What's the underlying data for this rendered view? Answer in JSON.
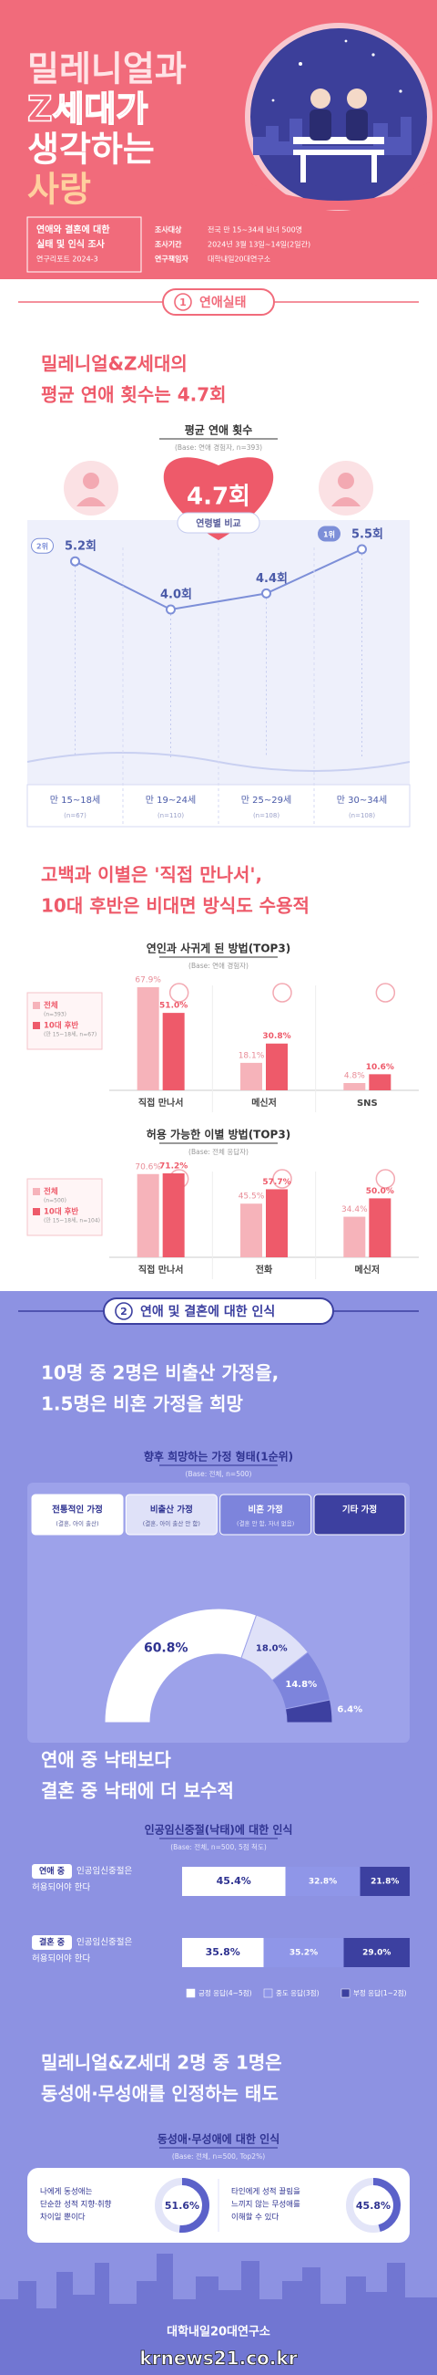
{
  "header": {
    "title_lines": [
      "밀레니얼과",
      "Z세대가",
      "생각하는",
      "사랑"
    ],
    "report_lines": [
      "연애와 결혼에 대한",
      "실태 및 인식 조사",
      "연구리포트 2024-3"
    ],
    "survey": [
      {
        "label": "조사대상",
        "value": "전국 만 15~34세 남녀 500명"
      },
      {
        "label": "조사기간",
        "value": "2024년 3월 13일~14일(2일간)"
      },
      {
        "label": "연구책임자",
        "value": "대학내일20대연구소"
      }
    ]
  },
  "section1": {
    "number": "1",
    "title": "연애실태"
  },
  "avg_dating": {
    "headline": [
      "밀레니얼&Z세대의",
      "평균 연애 횟수는 4.7회"
    ],
    "title": "평균 연애 횟수",
    "base": "(Base: 연애 경험자, n=393)",
    "value": 4.7,
    "value_label": "4.7회",
    "color": "#ee5a6a"
  },
  "age_chart": {
    "type": "line",
    "title": "연령별 비교",
    "categories": [
      "만 15~18세",
      "만 19~24세",
      "만 25~29세",
      "만 30~34세"
    ],
    "notes": [
      "(n=67)",
      "(n=110)",
      "(n=108)",
      "(n=108)"
    ],
    "values": [
      5.2,
      4.0,
      4.4,
      5.5
    ],
    "value_labels": [
      "5.2회",
      "4.0회",
      "4.4회",
      "5.5회"
    ],
    "ranks": [
      "2위",
      null,
      null,
      "1위"
    ],
    "color": "#7d8fd8"
  },
  "method_headline": [
    "고백과 이별은 '직접 만나서',",
    "10대 후반은 비대면 방식도 수용적"
  ],
  "bar_charts": [
    {
      "type": "bar",
      "title": "연인과 사귀게 된 방법(TOP3)",
      "base": "(Base: 연애 경험자)",
      "categories": [
        "직접 만나서",
        "메신저",
        "SNS"
      ],
      "series": [
        {
          "name": "전체",
          "note": "(n=393)",
          "color": "#f6b3ba",
          "values": [
            67.9,
            18.1,
            4.8
          ],
          "value_labels": [
            "67.9%",
            "18.1%",
            "4.8%"
          ]
        },
        {
          "name": "10대 후반",
          "note": "(만 15~18세, n=67)",
          "color": "#ee5a6a",
          "values": [
            51.0,
            30.8,
            10.6
          ],
          "value_labels": [
            "51.0%",
            "30.8%",
            "10.6%"
          ]
        }
      ]
    },
    {
      "type": "bar",
      "title": "허용 가능한 이별 방법(TOP3)",
      "base": "(Base: 전체 응답자)",
      "categories": [
        "직접 만나서",
        "전화",
        "메신저"
      ],
      "series": [
        {
          "name": "전체",
          "note": "(n=500)",
          "color": "#f6b3ba",
          "values": [
            70.6,
            45.5,
            34.4
          ],
          "value_labels": [
            "70.6%",
            "45.5%",
            "34.4%"
          ]
        },
        {
          "name": "10대 후반",
          "note": "(만 15~18세, n=104)",
          "color": "#ee5a6a",
          "values": [
            71.2,
            57.7,
            50.0
          ],
          "value_labels": [
            "71.2%",
            "57.7%",
            "50.0%"
          ]
        }
      ]
    }
  ],
  "section2": {
    "number": "2",
    "title": "연애 및 결혼에 대한 인식"
  },
  "family": {
    "type": "half_donut",
    "headline": [
      "10명 중 2명은 비출산 가정을,",
      "1.5명은 비혼 가정을 희망"
    ],
    "title": "향후 희망하는 가정 형태(1순위)",
    "base": "(Base: 전체, n=500)",
    "categories": [
      "전통적인 가정",
      "비출산 가정",
      "비혼 가정",
      "기타 가정"
    ],
    "descriptions": [
      "(결혼, 아이 출산)",
      "(결혼, 아이 출산 안 함)",
      "(결혼 안 함, 자녀 없음)",
      null
    ],
    "values": [
      60.8,
      18.0,
      14.8,
      6.4
    ],
    "value_labels": [
      "60.8%",
      "18.0%",
      "14.8%",
      "6.4%"
    ],
    "colors": [
      "#ffffff",
      "#dfe1f8",
      "#7d84dc",
      "#3d40a0"
    ]
  },
  "abortion": {
    "type": "stacked_bar",
    "headline": [
      "연애 중 낙태보다",
      "결혼 중 낙태에 더 보수적"
    ],
    "title": "인공임신중절(낙태)에 대한 인식",
    "base": "(Base: 전체, n=500, 5점 척도)",
    "row_tags": [
      "연애 중",
      "결혼 중"
    ],
    "row_lines": [
      [
        "인공임신중절은",
        "허용되어야 한다"
      ],
      [
        "인공임신중절은",
        "허용되어야 한다"
      ]
    ],
    "series": [
      {
        "name": "긍정 응답(4~5점)",
        "color": "#ffffff",
        "values": [
          45.4,
          35.8
        ],
        "value_labels": [
          "45.4%",
          "35.8%"
        ]
      },
      {
        "name": "중도 응답(3점)",
        "color": "#8f96e8",
        "values": [
          32.8,
          35.2
        ],
        "value_labels": [
          "32.8%",
          "35.2%"
        ]
      },
      {
        "name": "부정 응답(1~2점)",
        "color": "#3c40a0",
        "values": [
          21.8,
          29.0
        ],
        "value_labels": [
          "21.8%",
          "29.0%"
        ]
      }
    ]
  },
  "lgbt": {
    "type": "ring",
    "headline": [
      "밀레니얼&Z세대 2명 중 1명은",
      "동성애·무성애를 인정하는 태도"
    ],
    "title": "동성애·무성애에 대한 인식",
    "base": "(Base: 전체, n=500, Top2%)",
    "color": "#5b61c9",
    "items": [
      {
        "lines": [
          "나에게 동성애는",
          "단순한 성적 지향·취향",
          "차이일 뿐이다"
        ],
        "value": 51.6,
        "value_label": "51.6%"
      },
      {
        "lines": [
          "타인에게 성적 끌림을",
          "느끼지 않는 무성애를",
          "이해할 수 있다"
        ],
        "value": 45.8,
        "value_label": "45.8%"
      }
    ]
  },
  "footer": {
    "logo": "대학내일20대연구소",
    "watermark": "krnews21.co.kr"
  }
}
